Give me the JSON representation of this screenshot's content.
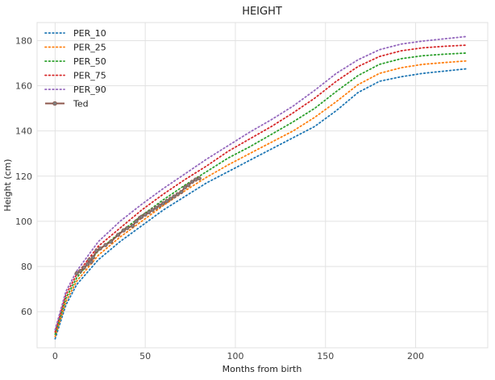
{
  "chart_data": {
    "type": "line",
    "title": "HEIGHT",
    "xlabel": "Months from birth",
    "ylabel": "Height (cm)",
    "xlim": [
      -10,
      240
    ],
    "ylim": [
      44,
      188
    ],
    "xticks": [
      0,
      50,
      100,
      150,
      200
    ],
    "yticks": [
      60,
      80,
      100,
      120,
      140,
      160,
      180
    ],
    "grid": true,
    "legend_position": "top-left",
    "x": [
      0,
      6,
      12,
      24,
      36,
      48,
      60,
      72,
      84,
      96,
      108,
      120,
      132,
      144,
      156,
      168,
      180,
      192,
      204,
      216,
      228
    ],
    "series": [
      {
        "name": "PER_10",
        "color": "#1f77b4",
        "style": "dotted",
        "values": [
          48,
          63,
          72,
          83,
          91,
          98,
          105,
          111,
          117,
          122,
          127,
          132,
          137,
          142,
          149,
          157,
          162,
          164,
          165.5,
          166.5,
          167.5
        ]
      },
      {
        "name": "PER_25",
        "color": "#ff7f0e",
        "style": "dotted",
        "values": [
          49,
          64.5,
          73.5,
          85,
          93,
          100,
          107,
          113.5,
          119.5,
          125,
          130,
          135,
          140,
          146,
          153,
          160.5,
          165.5,
          168,
          169.5,
          170.3,
          171
        ]
      },
      {
        "name": "PER_50",
        "color": "#2ca02c",
        "style": "dotted",
        "values": [
          50,
          66,
          75,
          87,
          95,
          102.5,
          109.5,
          116,
          122,
          128,
          133,
          138.5,
          144,
          150,
          157.5,
          164.5,
          169.5,
          172,
          173.3,
          174,
          174.5
        ]
      },
      {
        "name": "PER_75",
        "color": "#d62728",
        "style": "dotted",
        "values": [
          51,
          67.5,
          76.5,
          89,
          97,
          105,
          112,
          118.5,
          124.5,
          131,
          136.5,
          142,
          148,
          154.5,
          162,
          168.5,
          173,
          175.5,
          176.8,
          177.5,
          178
        ]
      },
      {
        "name": "PER_90",
        "color": "#9467bd",
        "style": "dotted",
        "values": [
          52,
          69,
          78,
          91,
          100,
          107.5,
          114.5,
          121,
          127.5,
          133.5,
          139.5,
          145,
          151,
          158,
          165.5,
          171.5,
          176,
          178.5,
          179.8,
          180.8,
          181.8
        ]
      },
      {
        "name": "Ted",
        "color": "#8c564b",
        "style": "solid-marker",
        "points": [
          [
            12,
            77
          ],
          [
            14,
            78
          ],
          [
            16,
            79.5
          ],
          [
            18,
            81
          ],
          [
            19,
            83
          ],
          [
            20,
            82
          ],
          [
            21,
            84
          ],
          [
            23,
            87
          ],
          [
            25,
            88
          ],
          [
            28,
            89.5
          ],
          [
            31,
            91
          ],
          [
            35,
            94
          ],
          [
            38,
            96
          ],
          [
            40,
            97
          ],
          [
            43,
            98
          ],
          [
            45,
            100
          ],
          [
            47,
            101.5
          ],
          [
            48,
            102
          ],
          [
            50,
            103
          ],
          [
            52,
            104
          ],
          [
            54,
            105
          ],
          [
            56,
            106
          ],
          [
            58,
            107
          ],
          [
            60,
            108
          ],
          [
            62,
            109
          ],
          [
            64,
            110
          ],
          [
            66,
            111
          ],
          [
            68,
            112
          ],
          [
            70,
            113
          ],
          [
            72,
            115
          ],
          [
            74,
            116
          ],
          [
            76,
            117.5
          ],
          [
            78,
            118.5
          ],
          [
            80,
            119
          ]
        ]
      }
    ]
  }
}
